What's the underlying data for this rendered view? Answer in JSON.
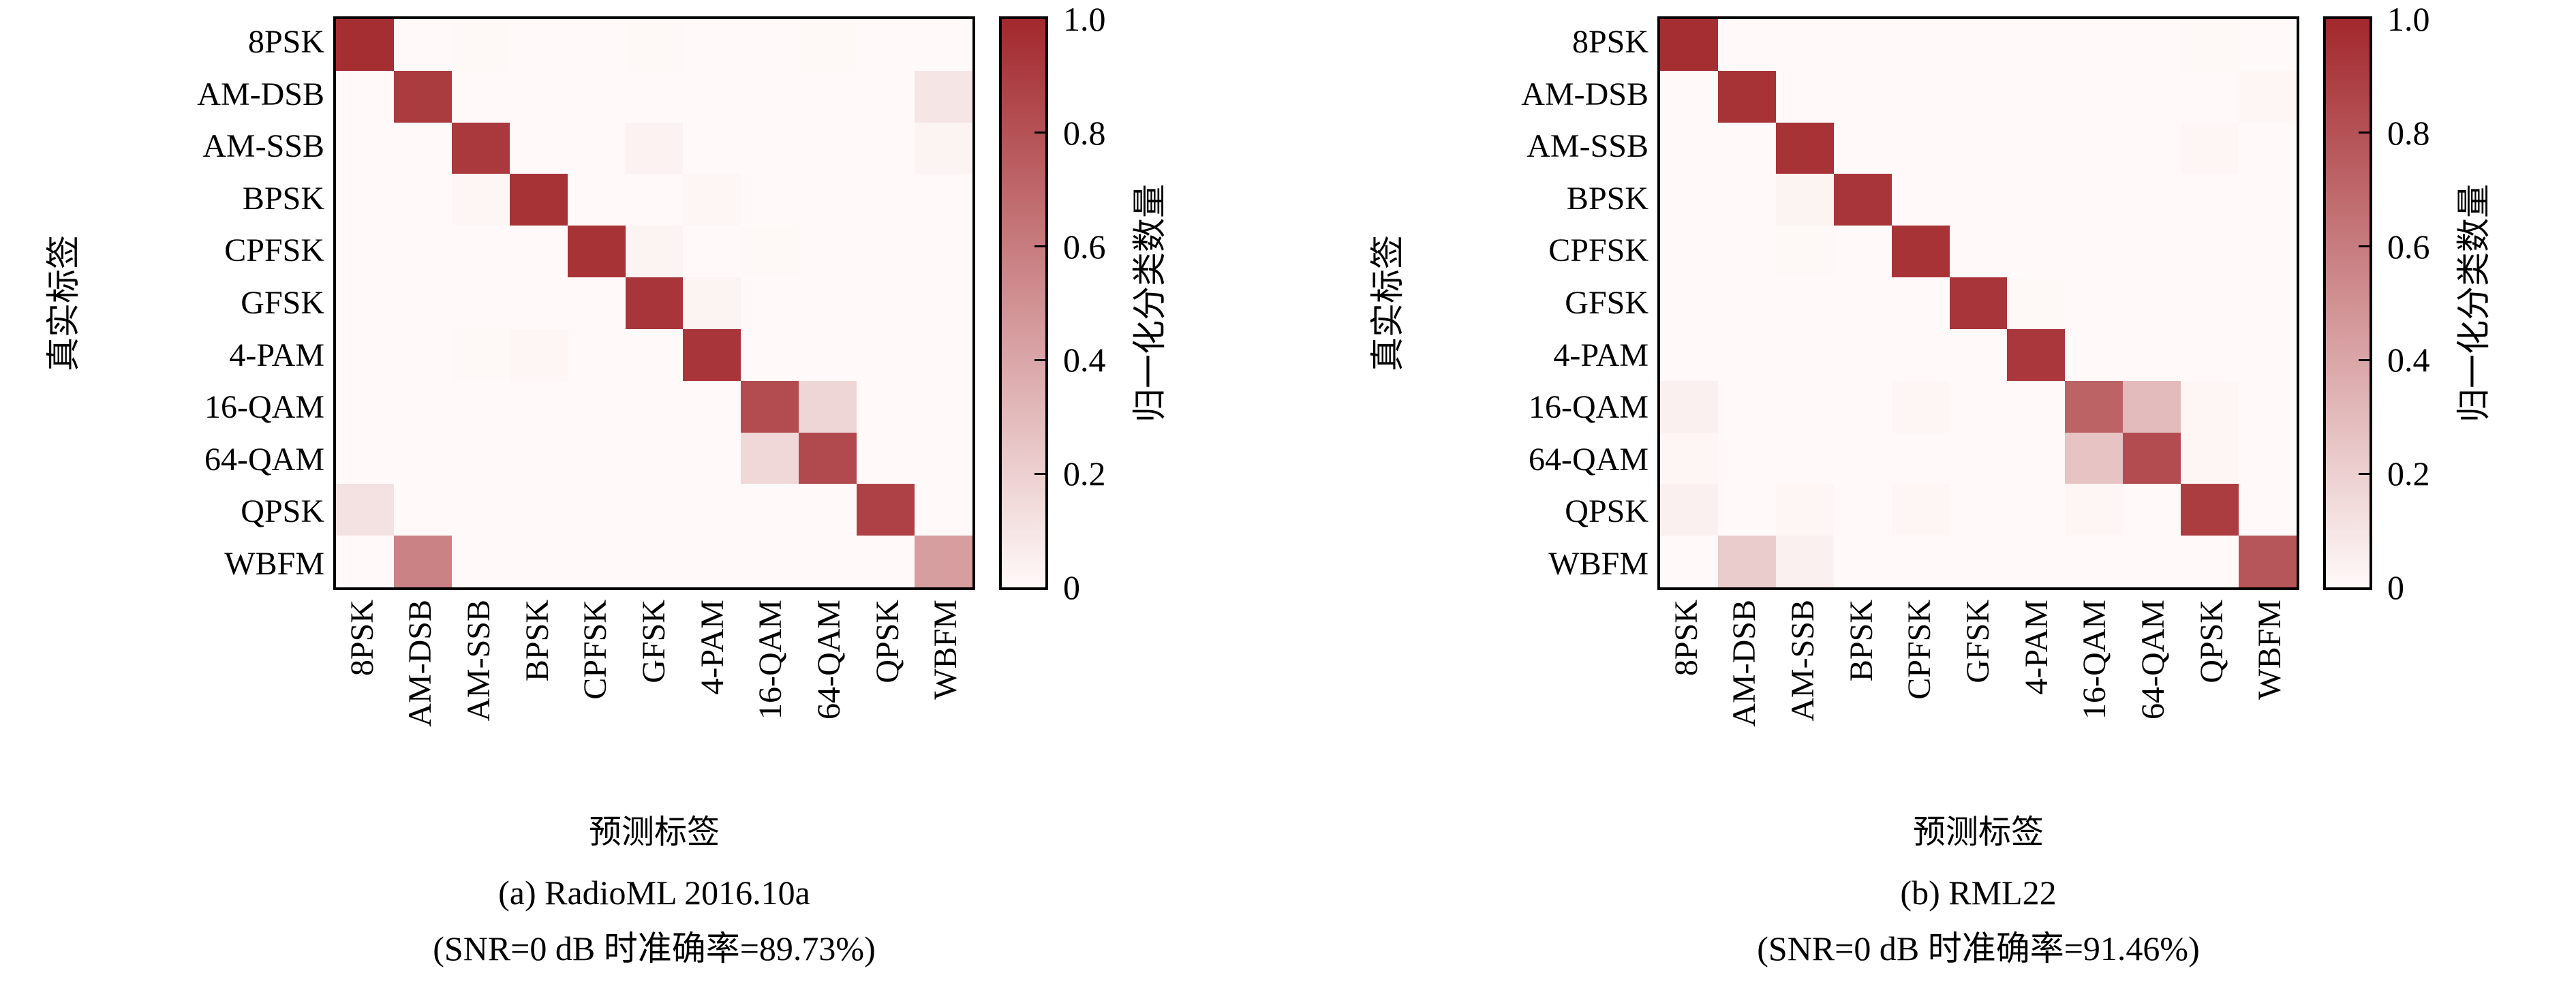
{
  "figure": {
    "background": "#ffffff",
    "axes_color": "#000000"
  },
  "colormap": {
    "low": "#FFFAF9",
    "high": "#A2282D"
  },
  "axes": {
    "x_label": "预测标签",
    "y_label": "真实标签"
  },
  "colorbar": {
    "label": "归一化分类数量",
    "tick_labels": [
      "1.0",
      "0.8",
      "0.6",
      "0.4",
      "0.2",
      "0"
    ],
    "tick_values": [
      1.0,
      0.8,
      0.6,
      0.4,
      0.2,
      0
    ],
    "vmin": 0,
    "vmax": 1
  },
  "classes": [
    "8PSK",
    "AM-DSB",
    "AM-SSB",
    "BPSK",
    "CPFSK",
    "GFSK",
    "4-PAM",
    "16-QAM",
    "64-QAM",
    "QPSK",
    "WBFM"
  ],
  "chart_data": [
    {
      "type": "heatmap",
      "title": "(a) RadioML 2016.10a",
      "subtitle": "(SNR=0 dB 时准确率=89.73%)",
      "snr_db": 0,
      "accuracy_percent": 89.73,
      "xlabel": "预测标签",
      "ylabel": "真实标签",
      "colorbar_label": "归一化分类数量",
      "x_categories": [
        "8PSK",
        "AM-DSB",
        "AM-SSB",
        "BPSK",
        "CPFSK",
        "GFSK",
        "4-PAM",
        "16-QAM",
        "64-QAM",
        "QPSK",
        "WBFM"
      ],
      "y_categories": [
        "8PSK",
        "AM-DSB",
        "AM-SSB",
        "BPSK",
        "CPFSK",
        "GFSK",
        "4-PAM",
        "16-QAM",
        "64-QAM",
        "QPSK",
        "WBFM"
      ],
      "vmin": 0,
      "vmax": 1,
      "values": [
        [
          0.97,
          0,
          0.01,
          0,
          0,
          0.01,
          0,
          0,
          0.01,
          0,
          0
        ],
        [
          0,
          0.91,
          0,
          0,
          0,
          0,
          0,
          0,
          0,
          0,
          0.1
        ],
        [
          0,
          0,
          0.92,
          0,
          0,
          0.04,
          0,
          0,
          0,
          0,
          0.03
        ],
        [
          0,
          0,
          0.02,
          0.95,
          0,
          0,
          0.02,
          0,
          0,
          0,
          0
        ],
        [
          0,
          0,
          0,
          0,
          0.95,
          0.03,
          0,
          0.01,
          0,
          0,
          0
        ],
        [
          0,
          0,
          0,
          0,
          0,
          0.94,
          0.03,
          0,
          0,
          0,
          0
        ],
        [
          0,
          0,
          0.01,
          0.02,
          0,
          0,
          0.94,
          0,
          0,
          0,
          0
        ],
        [
          0,
          0,
          0,
          0,
          0,
          0,
          0,
          0.83,
          0.17,
          0,
          0
        ],
        [
          0,
          0,
          0,
          0,
          0,
          0,
          0,
          0.16,
          0.84,
          0,
          0
        ],
        [
          0.12,
          0,
          0,
          0,
          0,
          0,
          0,
          0,
          0,
          0.88,
          0
        ],
        [
          0,
          0.57,
          0,
          0,
          0,
          0,
          0,
          0,
          0,
          0,
          0.44
        ]
      ]
    },
    {
      "type": "heatmap",
      "title": "(b) RML22",
      "subtitle": "(SNR=0 dB 时准确率=91.46%)",
      "snr_db": 0,
      "accuracy_percent": 91.46,
      "xlabel": "预测标签",
      "ylabel": "真实标签",
      "colorbar_label": "归一化分类数量",
      "x_categories": [
        "8PSK",
        "AM-DSB",
        "AM-SSB",
        "BPSK",
        "CPFSK",
        "GFSK",
        "4-PAM",
        "16-QAM",
        "64-QAM",
        "QPSK",
        "WBFM"
      ],
      "y_categories": [
        "8PSK",
        "AM-DSB",
        "AM-SSB",
        "BPSK",
        "CPFSK",
        "GFSK",
        "4-PAM",
        "16-QAM",
        "64-QAM",
        "QPSK",
        "WBFM"
      ],
      "vmin": 0,
      "vmax": 1,
      "values": [
        [
          0.97,
          0,
          0,
          0,
          0,
          0,
          0,
          0,
          0,
          0.01,
          0
        ],
        [
          0,
          0.95,
          0,
          0,
          0,
          0,
          0,
          0,
          0,
          0,
          0.02
        ],
        [
          0,
          0,
          0.95,
          0,
          0,
          0,
          0,
          0,
          0,
          0.02,
          0
        ],
        [
          0,
          0,
          0.03,
          0.94,
          0,
          0,
          0,
          0,
          0,
          0,
          0
        ],
        [
          0,
          0,
          0.01,
          0,
          0.95,
          0,
          0,
          0,
          0,
          0,
          0
        ],
        [
          0,
          0,
          0,
          0,
          0,
          0.94,
          0.01,
          0,
          0,
          0,
          0
        ],
        [
          0,
          0,
          0,
          0,
          0,
          0,
          0.93,
          0,
          0,
          0,
          0
        ],
        [
          0.05,
          0,
          0,
          0,
          0.02,
          0,
          0,
          0.72,
          0.3,
          0.02,
          0
        ],
        [
          0.02,
          0,
          0,
          0,
          0,
          0,
          0,
          0.26,
          0.83,
          0.02,
          0
        ],
        [
          0.05,
          0,
          0.02,
          0,
          0.02,
          0,
          0,
          0.02,
          0,
          0.9,
          0
        ],
        [
          0,
          0.22,
          0.05,
          0,
          0,
          0,
          0,
          0,
          0,
          0,
          0.78
        ]
      ]
    }
  ]
}
